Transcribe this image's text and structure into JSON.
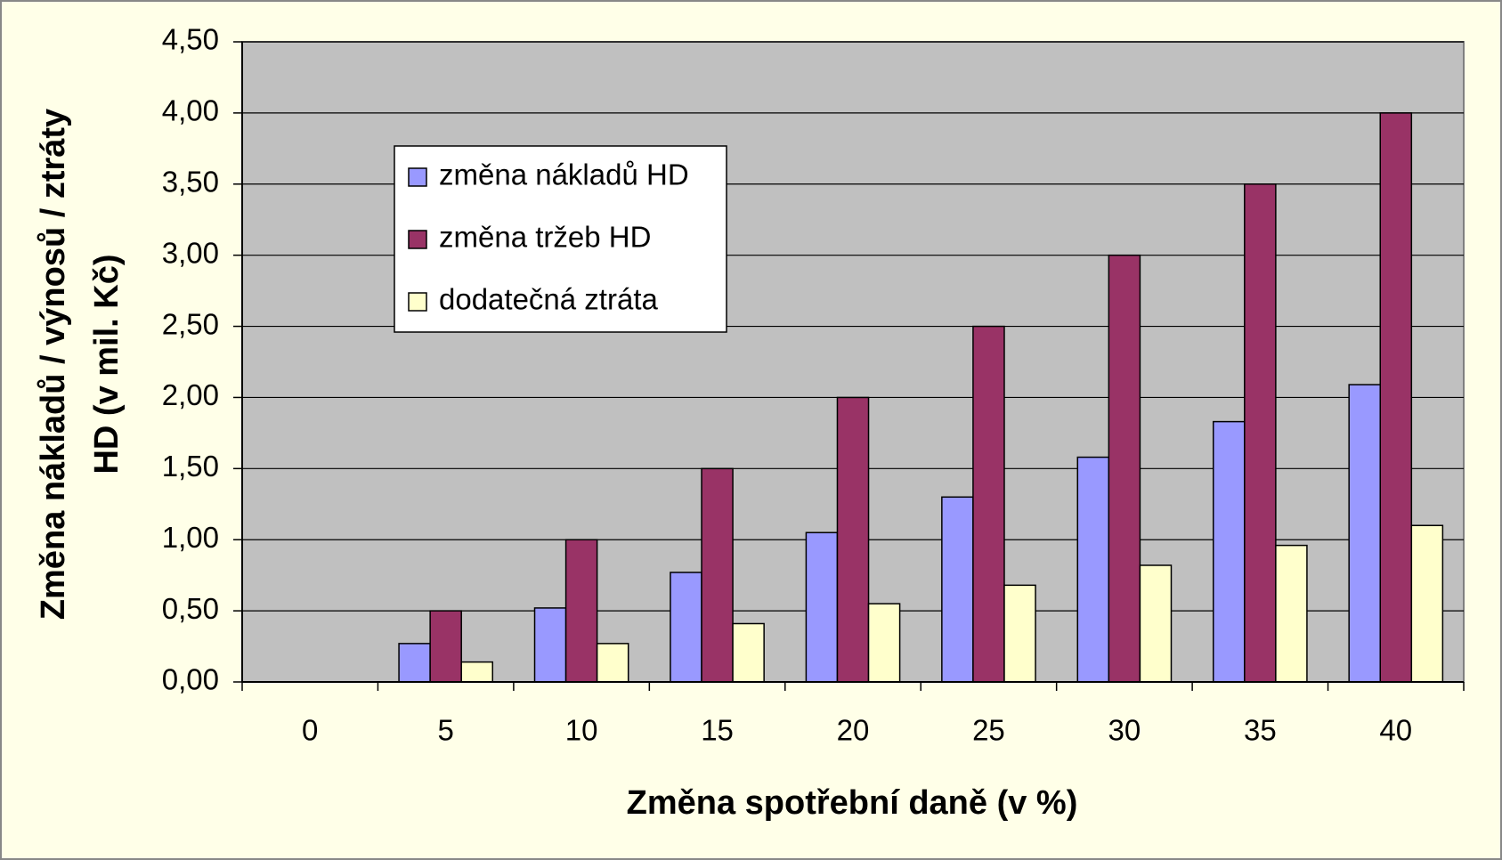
{
  "chart_data": {
    "type": "bar",
    "xlabel": "Změna spotřební daně (v %)",
    "ylabel": [
      "Změna nákladů / výnosů / ztráty",
      "HD (v mil. Kč)"
    ],
    "categories": [
      "0",
      "5",
      "10",
      "15",
      "20",
      "25",
      "30",
      "35",
      "40"
    ],
    "series": [
      {
        "name": "změna nákladů HD",
        "color": "#9999ff",
        "values": [
          0,
          0.27,
          0.52,
          0.77,
          1.05,
          1.3,
          1.58,
          1.83,
          2.09
        ]
      },
      {
        "name": "změna tržeb HD",
        "color": "#993366",
        "values": [
          0,
          0.5,
          1.0,
          1.5,
          2.0,
          2.5,
          3.0,
          3.5,
          4.0
        ]
      },
      {
        "name": "dodatečná ztráta",
        "color": "#ffffcc",
        "values": [
          0,
          0.14,
          0.27,
          0.41,
          0.55,
          0.68,
          0.82,
          0.96,
          1.1
        ]
      }
    ],
    "ylim": [
      0,
      4.5
    ],
    "yticks": [
      {
        "value": 0,
        "label": "0,00"
      },
      {
        "value": 0.5,
        "label": "0,50"
      },
      {
        "value": 1,
        "label": "1,00"
      },
      {
        "value": 1.5,
        "label": "1,50"
      },
      {
        "value": 2,
        "label": "2,00"
      },
      {
        "value": 2.5,
        "label": "2,50"
      },
      {
        "value": 3,
        "label": "3,00"
      },
      {
        "value": 3.5,
        "label": "3,50"
      },
      {
        "value": 4,
        "label": "4,00"
      },
      {
        "value": 4.5,
        "label": "4,50"
      }
    ],
    "grid": true,
    "legend": "upper left",
    "plot_background": "#c0c0c0"
  }
}
